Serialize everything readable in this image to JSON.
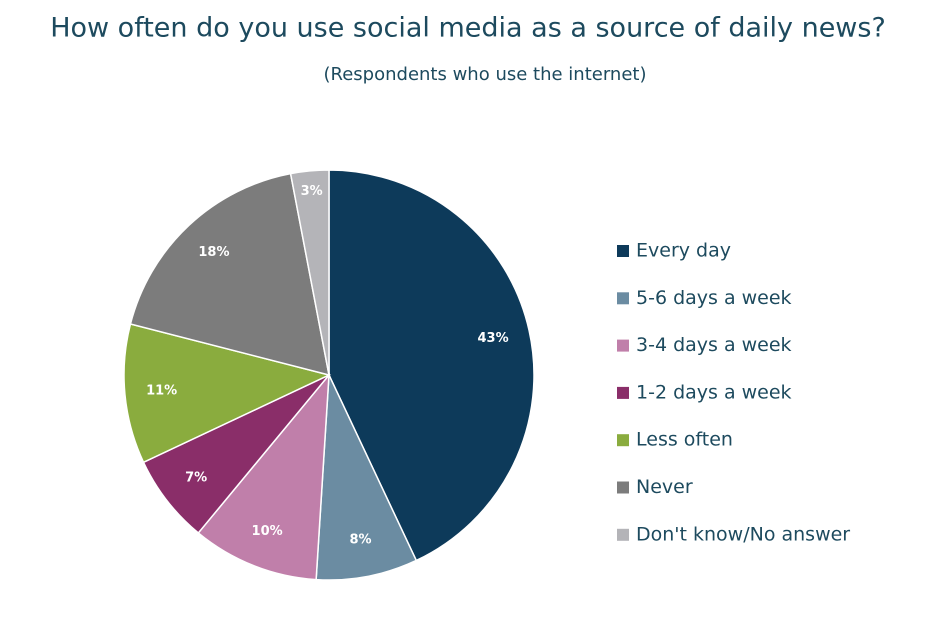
{
  "chart_data": {
    "type": "pie",
    "title": "How often do you use social media as a source of daily news?",
    "subtitle": "(Respondents who use the internet)",
    "categories": [
      "Every day",
      "5-6 days a week",
      "3-4 days a week",
      "1-2 days a week",
      "Less often",
      "Never",
      "Don't know/No answer"
    ],
    "values": [
      43,
      8,
      10,
      7,
      11,
      18,
      3
    ],
    "value_labels": [
      "43%",
      "8%",
      "10%",
      "7%",
      "11%",
      "18%",
      "3%"
    ],
    "colors": [
      "#0d3a5a",
      "#6b8ca2",
      "#c07faa",
      "#8a2e69",
      "#8aac3e",
      "#7c7c7c",
      "#b4b4b8"
    ],
    "legend": "right"
  }
}
